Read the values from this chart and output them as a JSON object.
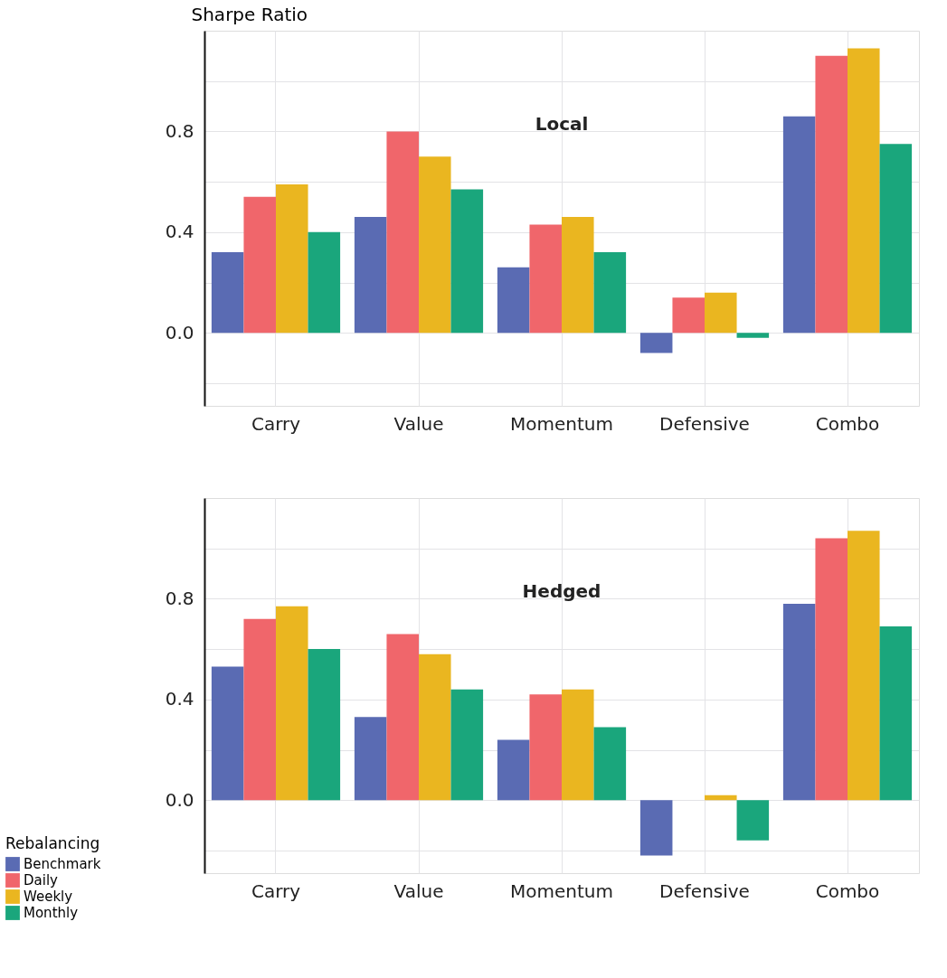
{
  "chart_data": [
    {
      "type": "bar",
      "title": "Local",
      "ylabel": "Sharpe Ratio",
      "categories": [
        "Carry",
        "Value",
        "Momentum",
        "Defensive",
        "Combo"
      ],
      "series": [
        {
          "color": "#5a6bb3",
          "values": [
            0.32,
            0.46,
            0.26,
            -0.08,
            0.86
          ]
        },
        {
          "color": "#f0666b",
          "values": [
            0.54,
            0.8,
            0.43,
            0.14,
            1.1
          ]
        },
        {
          "color": "#eab620",
          "values": [
            0.59,
            0.7,
            0.46,
            0.16,
            1.13
          ]
        },
        {
          "color": "#1aa67c",
          "values": [
            0.4,
            0.57,
            0.32,
            -0.02,
            0.75
          ]
        }
      ],
      "ylim": [
        -0.29,
        1.2
      ],
      "yticks": [
        {
          "value": -0.2,
          "label": null
        },
        {
          "value": 0,
          "label": "0.0"
        },
        {
          "value": 0.2,
          "label": null
        },
        {
          "value": 0.4,
          "label": "0.4"
        },
        {
          "value": 0.6,
          "label": null
        },
        {
          "value": 0.8,
          "label": "0.8"
        },
        {
          "value": 1.0,
          "label": null
        }
      ],
      "grid": true,
      "legend": false
    },
    {
      "type": "bar",
      "title": "Hedged",
      "categories": [
        "Carry",
        "Value",
        "Momentum",
        "Defensive",
        "Combo"
      ],
      "series": [
        {
          "name": "Benchmark",
          "color": "#5a6bb3",
          "values": [
            0.53,
            0.33,
            0.24,
            -0.22,
            0.78
          ]
        },
        {
          "name": "Daily",
          "color": "#f0666b",
          "values": [
            0.72,
            0.66,
            0.42,
            0.0,
            1.04
          ]
        },
        {
          "name": "Weekly",
          "color": "#eab620",
          "values": [
            0.77,
            0.58,
            0.44,
            0.02,
            1.07
          ]
        },
        {
          "name": "Monthly",
          "color": "#1aa67c",
          "values": [
            0.6,
            0.44,
            0.29,
            -0.16,
            0.69
          ]
        }
      ],
      "ylim": [
        -0.29,
        1.2
      ],
      "yticks": [
        {
          "value": -0.2,
          "label": null
        },
        {
          "value": 0,
          "label": "0.0"
        },
        {
          "value": 0.2,
          "label": null
        },
        {
          "value": 0.4,
          "label": "0.4"
        },
        {
          "value": 0.6,
          "label": null
        },
        {
          "value": 0.8,
          "label": "0.8"
        },
        {
          "value": 1.0,
          "label": null
        }
      ],
      "grid": true,
      "legend": "bottom left",
      "legend_title": "Rebalancing"
    }
  ]
}
